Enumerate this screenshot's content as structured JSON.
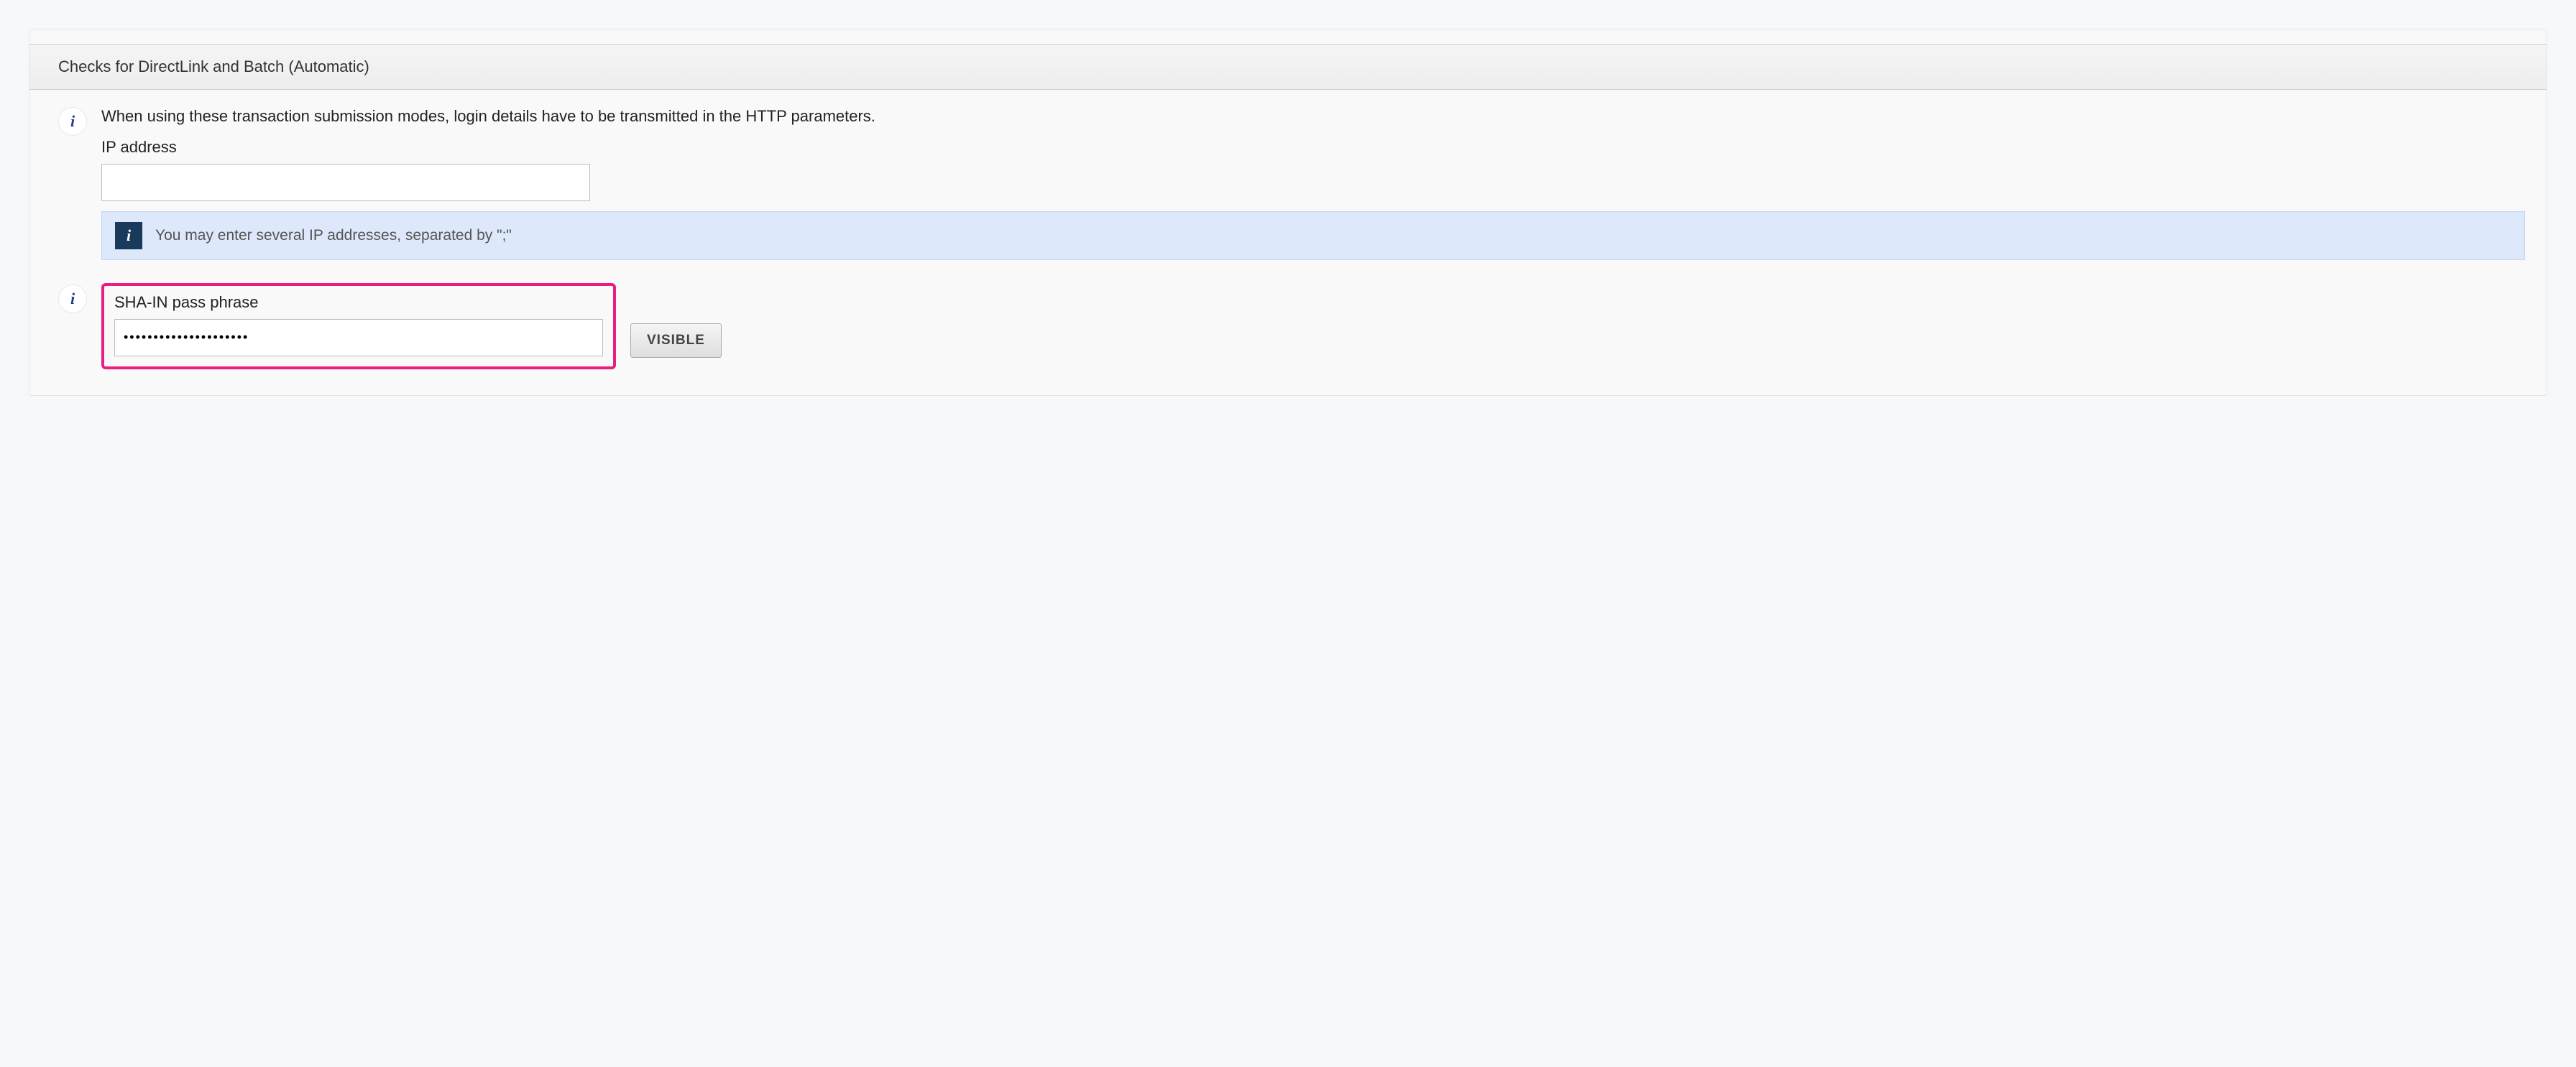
{
  "section": {
    "title": "Checks for DirectLink and Batch (Automatic)"
  },
  "intro": {
    "description": "When using these transaction submission modes, login details have to be transmitted in the HTTP parameters.",
    "ip_label": "IP address",
    "ip_value": "",
    "ip_hint": "You may enter several IP addresses, separated by \";\""
  },
  "sha": {
    "label": "SHA-IN pass phrase",
    "value_masked": "•••••••••••••••••••••",
    "visible_button": "VISIBLE"
  },
  "colors": {
    "highlight_border": "#e91e82",
    "callout_bg": "#dde9fb",
    "callout_border": "#c3d5f1",
    "callout_icon_bg": "#1a3a5c",
    "info_icon_color": "#1a3e8c",
    "panel_bg": "#f9f9f9",
    "page_bg": "#f7f8f9"
  }
}
